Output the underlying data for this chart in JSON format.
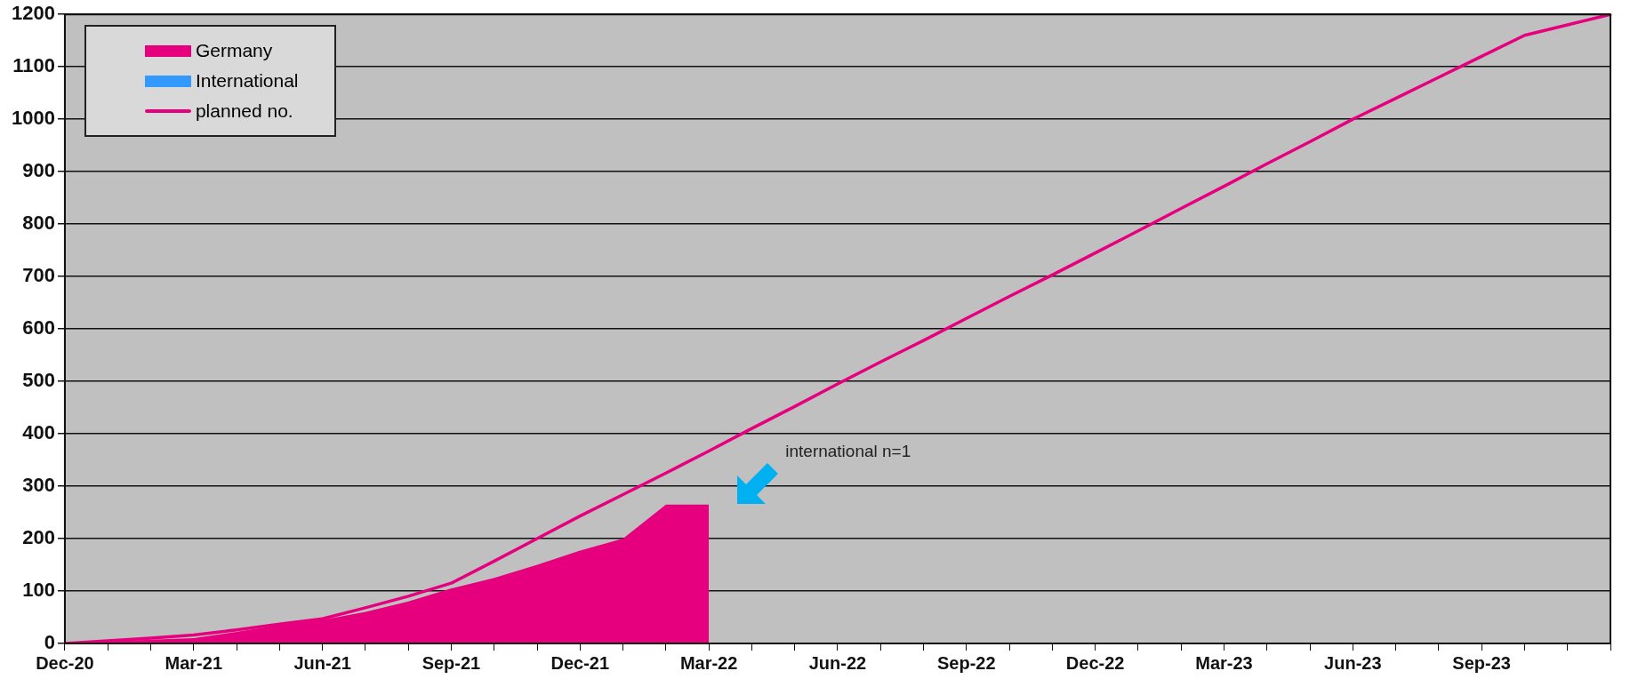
{
  "chart_data": {
    "type": "area",
    "categories": [
      "Dec-20",
      null,
      null,
      "Mar-21",
      null,
      null,
      "Jun-21",
      null,
      null,
      "Sep-21",
      null,
      null,
      "Dec-21",
      null,
      null,
      "Mar-22",
      null,
      null,
      "Jun-22",
      null,
      null,
      "Sep-22",
      null,
      null,
      "Dec-22",
      null,
      null,
      "Mar-23",
      null,
      null,
      "Jun-23",
      null,
      null,
      "Sep-23",
      null,
      null,
      null
    ],
    "series": [
      {
        "name": "Germany",
        "type": "area",
        "color": "#e6007e",
        "values": [
          0,
          4,
          7,
          10,
          22,
          35,
          45,
          60,
          80,
          105,
          125,
          150,
          177,
          200,
          265,
          265,
          null,
          null,
          null,
          null,
          null,
          null,
          null,
          null,
          null,
          null,
          null,
          null,
          null,
          null,
          null,
          null,
          null,
          null,
          null,
          null,
          null
        ]
      },
      {
        "name": "International",
        "type": "area",
        "color": "#3399ff",
        "values": [
          null,
          null,
          null,
          null,
          null,
          null,
          null,
          null,
          null,
          null,
          null,
          null,
          null,
          null,
          null,
          null,
          null,
          null,
          null,
          null,
          null,
          null,
          null,
          null,
          null,
          null,
          null,
          null,
          null,
          null,
          null,
          null,
          null,
          null,
          null,
          null,
          null
        ]
      },
      {
        "name": "planned no.",
        "type": "line",
        "color": "#e6007e",
        "values": [
          0,
          5,
          10,
          16,
          26,
          37,
          47,
          68,
          90,
          115,
          157,
          200,
          243,
          284,
          325,
          367,
          410,
          452,
          495,
          537,
          578,
          620,
          662,
          703,
          745,
          787,
          830,
          872,
          915,
          957,
          1000,
          1040,
          1080,
          1120,
          1160,
          1180,
          1200
        ]
      }
    ],
    "ylim": [
      0,
      1200
    ],
    "yticks": [
      0,
      100,
      200,
      300,
      400,
      500,
      600,
      700,
      800,
      900,
      1000,
      1100,
      1200
    ],
    "grid": "y",
    "legend": "top left",
    "annotations": [
      "international n=1"
    ]
  }
}
